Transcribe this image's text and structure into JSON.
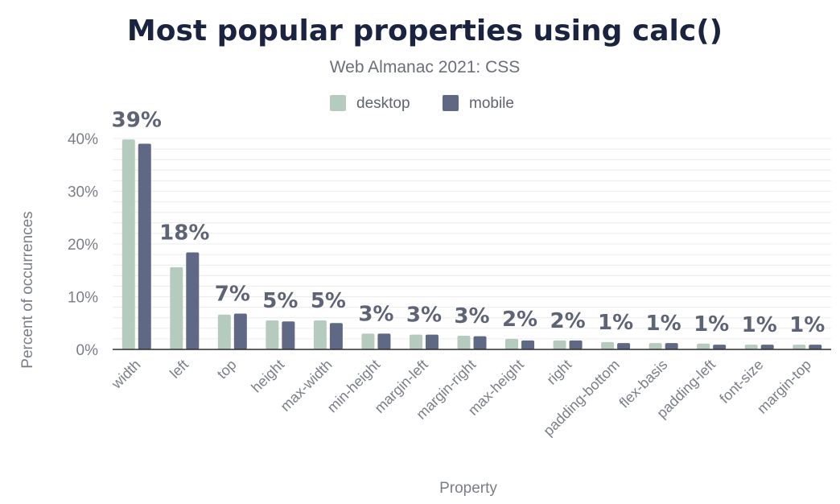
{
  "chart_data": {
    "type": "bar",
    "title": "Most popular properties using calc()",
    "subtitle": "Web Almanac 2021: CSS",
    "xlabel": "Property",
    "ylabel": "Percent of occurrences",
    "ylim": [
      0,
      40
    ],
    "yticks": [
      "0%",
      "10%",
      "20%",
      "30%",
      "40%"
    ],
    "grid": true,
    "legend_position": "top-center",
    "categories": [
      "width",
      "left",
      "top",
      "height",
      "max-width",
      "min-height",
      "margin-left",
      "margin-right",
      "max-height",
      "right",
      "padding-bottom",
      "flex-basis",
      "padding-left",
      "font-size",
      "margin-top"
    ],
    "series": [
      {
        "name": "desktop",
        "color": "#b5cbbd",
        "values": [
          39.8,
          15.6,
          6.6,
          5.5,
          5.5,
          3.0,
          2.8,
          2.6,
          2.0,
          1.7,
          1.4,
          1.2,
          1.1,
          0.9,
          0.9
        ]
      },
      {
        "name": "mobile",
        "color": "#5f6885",
        "values": [
          39.0,
          18.4,
          6.8,
          5.3,
          5.0,
          3.0,
          2.8,
          2.5,
          1.7,
          1.7,
          1.2,
          1.2,
          0.9,
          0.9,
          0.9
        ]
      }
    ],
    "data_labels": [
      "39%",
      "18%",
      "7%",
      "5%",
      "5%",
      "3%",
      "3%",
      "3%",
      "2%",
      "2%",
      "1%",
      "1%",
      "1%",
      "1%",
      "1%"
    ]
  }
}
